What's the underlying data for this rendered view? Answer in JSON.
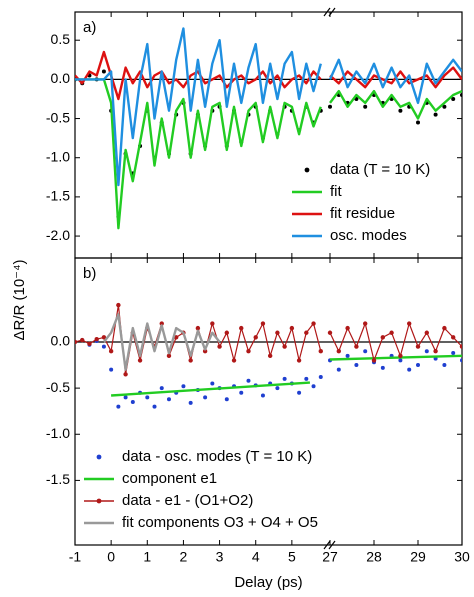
{
  "y_label": "ΔR/R (10⁻⁴)",
  "chart_data": [
    {
      "type": "line",
      "panel_label": "a)",
      "legend": "lower right",
      "xlim": [
        [
          -1,
          6
        ],
        [
          27,
          30
        ]
      ],
      "ylim": [
        -2.28,
        0.86
      ],
      "yticks": [
        0.5,
        {
          "value": 0,
          "label": "0.0"
        },
        -0.5,
        {
          "value": -1,
          "label": "-1.0"
        },
        -1.5,
        {
          "value": -2,
          "label": "-2.0"
        }
      ],
      "series": [
        {
          "name": "data (T = 10 K)",
          "color": "#000000",
          "style": "dots",
          "x": [
            -1,
            -0.8,
            -0.6,
            -0.4,
            -0.2,
            0,
            0.2,
            0.4,
            0.6,
            0.8,
            1,
            1.2,
            1.4,
            1.6,
            1.8,
            2,
            2.2,
            2.4,
            2.6,
            2.8,
            3,
            3.2,
            3.4,
            3.6,
            3.8,
            4,
            4.2,
            4.4,
            4.6,
            4.8,
            5,
            5.2,
            5.4,
            5.6,
            5.8,
            27,
            27.2,
            27.4,
            27.6,
            27.8,
            28,
            28.2,
            28.4,
            28.6,
            28.8,
            29,
            29.2,
            29.4,
            29.6,
            29.8,
            30
          ],
          "values": [
            0.0,
            -0.05,
            0.05,
            0.0,
            0.1,
            -0.4,
            -1.75,
            -0.95,
            -1.2,
            -0.85,
            -0.4,
            -1.0,
            -0.55,
            -0.95,
            -0.45,
            -0.3,
            -0.95,
            -0.45,
            -0.85,
            -0.4,
            -0.35,
            -0.85,
            -0.4,
            -0.8,
            -0.45,
            -0.35,
            -0.75,
            -0.4,
            -0.7,
            -0.35,
            -0.4,
            -0.65,
            -0.35,
            -0.55,
            -0.4,
            -0.35,
            -0.2,
            -0.3,
            -0.25,
            -0.35,
            -0.2,
            -0.3,
            -0.25,
            -0.4,
            -0.35,
            -0.55,
            -0.3,
            -0.45,
            -0.35,
            -0.25,
            -0.2
          ]
        },
        {
          "name": "fit",
          "color": "#22cc22",
          "style": "line",
          "x": [
            -1,
            -0.8,
            -0.6,
            -0.4,
            -0.2,
            0,
            0.2,
            0.4,
            0.6,
            0.8,
            1,
            1.2,
            1.4,
            1.6,
            1.8,
            2,
            2.2,
            2.4,
            2.6,
            2.8,
            3,
            3.2,
            3.4,
            3.6,
            3.8,
            4,
            4.2,
            4.4,
            4.6,
            4.8,
            5,
            5.2,
            5.4,
            5.6,
            5.8,
            27,
            27.2,
            27.4,
            27.6,
            27.8,
            28,
            28.2,
            28.4,
            28.6,
            28.8,
            29,
            29.2,
            29.4,
            29.6,
            29.8,
            30
          ],
          "values": [
            0,
            0,
            0,
            0,
            0,
            -0.3,
            -1.9,
            -0.9,
            -1.3,
            -0.8,
            -0.3,
            -1.1,
            -0.5,
            -1.0,
            -0.4,
            -0.25,
            -1.0,
            -0.4,
            -0.9,
            -0.35,
            -0.3,
            -0.9,
            -0.35,
            -0.85,
            -0.4,
            -0.3,
            -0.8,
            -0.35,
            -0.75,
            -0.3,
            -0.35,
            -0.7,
            -0.3,
            -0.6,
            -0.35,
            -0.3,
            -0.15,
            -0.35,
            -0.2,
            -0.3,
            -0.15,
            -0.35,
            -0.2,
            -0.35,
            -0.3,
            -0.5,
            -0.25,
            -0.4,
            -0.3,
            -0.2,
            -0.15
          ]
        },
        {
          "name": "fit residue",
          "color": "#dd1111",
          "style": "line",
          "x": [
            -1,
            -0.8,
            -0.6,
            -0.4,
            -0.2,
            0,
            0.2,
            0.4,
            0.6,
            0.8,
            1,
            1.2,
            1.4,
            1.6,
            1.8,
            2,
            2.2,
            2.4,
            2.6,
            2.8,
            3,
            3.2,
            3.4,
            3.6,
            3.8,
            4,
            4.2,
            4.4,
            4.6,
            4.8,
            5,
            5.2,
            5.4,
            5.6,
            5.8,
            27,
            27.2,
            27.4,
            27.6,
            27.8,
            28,
            28.2,
            28.4,
            28.6,
            28.8,
            29,
            29.2,
            29.4,
            29.6,
            29.8,
            30
          ],
          "values": [
            0.05,
            -0.05,
            0.1,
            0.05,
            0.35,
            0.05,
            -0.25,
            0.15,
            -0.05,
            0.1,
            -0.1,
            0.05,
            0.1,
            -0.05,
            0.0,
            -0.1,
            0.05,
            0.1,
            -0.05,
            0.0,
            0.05,
            -0.1,
            0.0,
            0.05,
            -0.05,
            0.0,
            0.1,
            -0.05,
            0.05,
            -0.1,
            0.0,
            0.05,
            -0.05,
            0.1,
            0.0,
            0.05,
            -0.05,
            0.1,
            0.0,
            -0.1,
            0.05,
            0.0,
            -0.05,
            0.1,
            -0.05,
            0.0,
            0.05,
            -0.1,
            0.05,
            0.15,
            0.0
          ]
        },
        {
          "name": "osc. modes",
          "color": "#1f8fe0",
          "style": "line",
          "x": [
            -1,
            -0.8,
            -0.6,
            -0.4,
            -0.2,
            0,
            0.2,
            0.4,
            0.6,
            0.8,
            1,
            1.2,
            1.4,
            1.6,
            1.8,
            2,
            2.2,
            2.4,
            2.6,
            2.8,
            3,
            3.2,
            3.4,
            3.6,
            3.8,
            4,
            4.2,
            4.4,
            4.6,
            4.8,
            5,
            5.2,
            5.4,
            5.6,
            5.8,
            27,
            27.2,
            27.4,
            27.6,
            27.8,
            28,
            28.2,
            28.4,
            28.6,
            28.8,
            29,
            29.2,
            29.4,
            29.6,
            29.8,
            30
          ],
          "values": [
            0,
            0,
            0,
            0,
            0,
            0.1,
            -1.35,
            0.0,
            -0.75,
            0.0,
            0.45,
            -0.5,
            0.1,
            -0.4,
            0.25,
            0.65,
            -0.4,
            0.25,
            -0.35,
            0.2,
            0.5,
            -0.35,
            0.2,
            -0.3,
            0.15,
            0.45,
            -0.3,
            0.2,
            -0.25,
            0.2,
            0.35,
            -0.25,
            0.2,
            -0.15,
            0.2,
            0.0,
            0.25,
            -0.1,
            0.1,
            -0.05,
            0.2,
            -0.1,
            0.15,
            -0.1,
            0.05,
            -0.3,
            0.2,
            -0.05,
            0.1,
            0.25,
            0.1
          ]
        }
      ]
    },
    {
      "type": "line",
      "panel_label": "b)",
      "legend": "lower left",
      "xlabel": "Delay (ps)",
      "xlim": [
        [
          -1,
          6
        ],
        [
          27,
          30
        ]
      ],
      "xticks": [
        -1,
        0,
        1,
        2,
        3,
        4,
        5,
        27,
        28,
        29,
        30
      ],
      "ylim": [
        -2.2,
        0.91
      ],
      "yticks": [
        {
          "value": 0,
          "label": "0.0"
        },
        -0.5,
        {
          "value": -1,
          "label": "-1.0"
        },
        -1.5
      ],
      "series": [
        {
          "name": "data - osc. modes (T = 10 K)",
          "color": "#1f3fd0",
          "style": "dots",
          "x": [
            -1,
            -0.8,
            -0.6,
            -0.4,
            -0.2,
            0,
            0.2,
            0.4,
            0.6,
            0.8,
            1,
            1.2,
            1.4,
            1.6,
            1.8,
            2,
            2.2,
            2.4,
            2.6,
            2.8,
            3,
            3.2,
            3.4,
            3.6,
            3.8,
            4,
            4.2,
            4.4,
            4.6,
            4.8,
            5,
            5.2,
            5.4,
            5.6,
            5.8,
            27,
            27.2,
            27.4,
            27.6,
            27.8,
            28,
            28.2,
            28.4,
            28.6,
            28.8,
            29,
            29.2,
            29.4,
            29.6,
            29.8,
            30
          ],
          "values": [
            0.0,
            0.02,
            -0.03,
            0.01,
            -0.05,
            -0.3,
            -0.7,
            -0.6,
            -0.65,
            -0.55,
            -0.6,
            -0.7,
            -0.5,
            -0.62,
            -0.55,
            -0.48,
            -0.66,
            -0.52,
            -0.6,
            -0.45,
            -0.5,
            -0.62,
            -0.48,
            -0.55,
            -0.42,
            -0.47,
            -0.58,
            -0.45,
            -0.5,
            -0.4,
            -0.45,
            -0.55,
            -0.4,
            -0.48,
            -0.38,
            -0.2,
            -0.3,
            -0.15,
            -0.25,
            -0.1,
            -0.22,
            -0.28,
            -0.15,
            -0.2,
            -0.3,
            -0.25,
            -0.1,
            -0.18,
            -0.25,
            -0.12,
            -0.2
          ]
        },
        {
          "name": "component e1",
          "color": "#22cc22",
          "style": "line",
          "x": [
            0,
            5.5,
            27,
            30
          ],
          "values": [
            -0.58,
            -0.44,
            -0.19,
            -0.15
          ]
        },
        {
          "name": "data - e1 - (O1+O2)",
          "color": "#b01818",
          "style": "line-markers",
          "x": [
            -1,
            -0.8,
            -0.6,
            -0.4,
            -0.2,
            0,
            0.2,
            0.4,
            0.6,
            0.8,
            1,
            1.2,
            1.4,
            1.6,
            1.8,
            2,
            2.2,
            2.4,
            2.6,
            2.8,
            3,
            3.2,
            3.4,
            3.6,
            3.8,
            4,
            4.2,
            4.4,
            4.6,
            4.8,
            5,
            5.2,
            5.4,
            5.6,
            5.8,
            27,
            27.2,
            27.4,
            27.6,
            27.8,
            28,
            28.2,
            28.4,
            28.6,
            28.8,
            29,
            29.2,
            29.4,
            29.6,
            29.8,
            30
          ],
          "values": [
            0.0,
            0.02,
            -0.02,
            0.03,
            0.05,
            -0.1,
            0.4,
            -0.35,
            0.1,
            -0.2,
            0.15,
            -0.05,
            0.2,
            -0.15,
            0.05,
            0.1,
            -0.2,
            0.15,
            -0.1,
            0.2,
            -0.05,
            0.1,
            -0.2,
            0.15,
            -0.1,
            0.05,
            0.2,
            -0.15,
            0.1,
            -0.05,
            0.15,
            -0.2,
            0.1,
            0.2,
            -0.1,
            0.1,
            -0.1,
            0.15,
            -0.05,
            0.2,
            -0.2,
            0.05,
            0.1,
            -0.15,
            0.2,
            -0.05,
            0.1,
            -0.1,
            0.15,
            0.05,
            -0.05
          ]
        },
        {
          "name": "fit components O3 + O4 + O5",
          "color": "#999999",
          "style": "line",
          "x": [
            -0.2,
            0,
            0.2,
            0.4,
            0.6,
            0.8,
            1,
            1.2,
            1.4,
            1.6,
            1.8,
            2,
            2.2,
            2.4,
            2.6,
            2.8,
            3
          ],
          "values": [
            0,
            0.1,
            0.3,
            -0.3,
            0.15,
            -0.15,
            0.2,
            -0.1,
            0.18,
            -0.12,
            0.15,
            0.1,
            -0.15,
            0.12,
            -0.08,
            0.1,
            0.0
          ]
        }
      ]
    }
  ]
}
